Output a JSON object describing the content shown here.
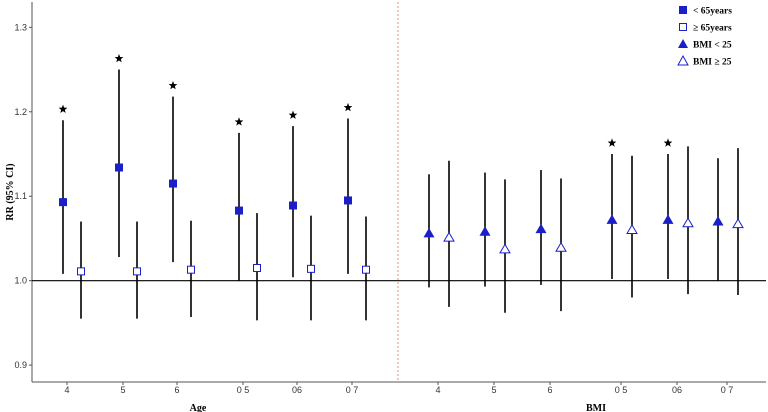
{
  "chart_data": {
    "type": "scatter",
    "ylabel": "RR (95% CI)",
    "ylim": [
      0.88,
      1.33
    ],
    "yticks": [
      "0.9",
      "1.0",
      "1.1",
      "1.2",
      "1.3"
    ],
    "ytick_values": [
      0.9,
      1.0,
      1.1,
      1.2,
      1.3
    ],
    "reference_line": 1.0,
    "panel_divider": "dashed red vertical line between panels",
    "panels": [
      {
        "name": "Age",
        "ticks": [
          "4",
          "5",
          "6",
          "0 5",
          "06",
          "0 7"
        ]
      },
      {
        "name": "BMI",
        "ticks": [
          "4",
          "5",
          "6",
          "0 5",
          "06",
          "0 7"
        ]
      }
    ],
    "legend": {
      "position": "top-right",
      "entries": [
        {
          "label": "< 65years",
          "marker": "filled-square"
        },
        {
          "label": "≥ 65years",
          "marker": "open-square"
        },
        {
          "label": "BMI < 25",
          "marker": "filled-triangle"
        },
        {
          "label": "BMI ≥ 25",
          "marker": "open-triangle"
        }
      ]
    },
    "series": [
      {
        "name": "< 65years",
        "panel": 0,
        "marker": "filled-square",
        "points": [
          {
            "group": 0,
            "est": 1.093,
            "lo": 1.008,
            "hi": 1.19,
            "star": true
          },
          {
            "group": 1,
            "est": 1.134,
            "lo": 1.028,
            "hi": 1.25,
            "star": true
          },
          {
            "group": 2,
            "est": 1.115,
            "lo": 1.022,
            "hi": 1.218,
            "star": true
          },
          {
            "group": 3,
            "est": 1.083,
            "lo": 1.0,
            "hi": 1.175,
            "star": true
          },
          {
            "group": 4,
            "est": 1.089,
            "lo": 1.004,
            "hi": 1.183,
            "star": true
          },
          {
            "group": 5,
            "est": 1.095,
            "lo": 1.008,
            "hi": 1.192,
            "star": true
          }
        ]
      },
      {
        "name": "≥ 65years",
        "panel": 0,
        "marker": "open-square",
        "points": [
          {
            "group": 0,
            "est": 1.011,
            "lo": 0.955,
            "hi": 1.07,
            "star": false
          },
          {
            "group": 1,
            "est": 1.011,
            "lo": 0.955,
            "hi": 1.07,
            "star": false
          },
          {
            "group": 2,
            "est": 1.013,
            "lo": 0.957,
            "hi": 1.071,
            "star": false
          },
          {
            "group": 3,
            "est": 1.015,
            "lo": 0.953,
            "hi": 1.08,
            "star": false
          },
          {
            "group": 4,
            "est": 1.014,
            "lo": 0.953,
            "hi": 1.077,
            "star": false
          },
          {
            "group": 5,
            "est": 1.013,
            "lo": 0.953,
            "hi": 1.076,
            "star": false
          }
        ]
      },
      {
        "name": "BMI < 25",
        "panel": 1,
        "marker": "filled-triangle",
        "points": [
          {
            "group": 0,
            "est": 1.056,
            "lo": 0.992,
            "hi": 1.126,
            "star": false
          },
          {
            "group": 1,
            "est": 1.058,
            "lo": 0.993,
            "hi": 1.128,
            "star": false
          },
          {
            "group": 2,
            "est": 1.061,
            "lo": 0.995,
            "hi": 1.131,
            "star": false
          },
          {
            "group": 3,
            "est": 1.072,
            "lo": 1.002,
            "hi": 1.15,
            "star": true
          },
          {
            "group": 4,
            "est": 1.072,
            "lo": 1.002,
            "hi": 1.15,
            "star": true
          },
          {
            "group": 5,
            "est": 1.07,
            "lo": 1.0,
            "hi": 1.145,
            "star": false
          }
        ]
      },
      {
        "name": "BMI ≥ 25",
        "panel": 1,
        "marker": "open-triangle",
        "points": [
          {
            "group": 0,
            "est": 1.051,
            "lo": 0.969,
            "hi": 1.142,
            "star": false
          },
          {
            "group": 1,
            "est": 1.037,
            "lo": 0.962,
            "hi": 1.12,
            "star": false
          },
          {
            "group": 2,
            "est": 1.039,
            "lo": 0.964,
            "hi": 1.121,
            "star": false
          },
          {
            "group": 3,
            "est": 1.06,
            "lo": 0.98,
            "hi": 1.148,
            "star": false
          },
          {
            "group": 4,
            "est": 1.068,
            "lo": 0.984,
            "hi": 1.159,
            "star": false
          },
          {
            "group": 5,
            "est": 1.067,
            "lo": 0.983,
            "hi": 1.157,
            "star": false
          }
        ]
      }
    ],
    "colors": {
      "marker": "#1a1fc9",
      "whisker": "#000000",
      "divider": "#e08a7f",
      "star": "#000000"
    },
    "grid": false
  }
}
